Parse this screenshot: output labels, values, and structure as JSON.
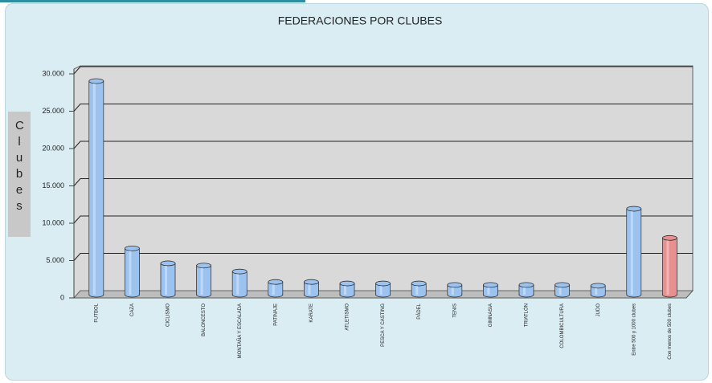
{
  "chart_data": {
    "type": "bar",
    "title": "FEDERACIONES POR CLUBES",
    "y_label": "Clubes",
    "categories": [
      "FUTBOL",
      "CAZA",
      "CICLISMO",
      "BALONCESTO",
      "MONTAÑA Y ESCALADA",
      "PATINAJE",
      "KARATE",
      "ATLETISMO",
      "PESCA Y CASTING",
      "PÁDEL",
      "TENIS",
      "GIMNASIA",
      "TRIATLÓN",
      "COLOMBICULTURA",
      "JUDO",
      "Entre 500 y 1000 clubes",
      "Con menos de 500 clubes"
    ],
    "values": [
      28600,
      6200,
      4200,
      3900,
      3100,
      1700,
      1700,
      1500,
      1500,
      1500,
      1300,
      1300,
      1300,
      1300,
      1200,
      11500,
      7600
    ],
    "colors": [
      "#9cc3f0",
      "#9cc3f0",
      "#9cc3f0",
      "#9cc3f0",
      "#9cc3f0",
      "#9cc3f0",
      "#9cc3f0",
      "#9cc3f0",
      "#9cc3f0",
      "#9cc3f0",
      "#9cc3f0",
      "#9cc3f0",
      "#9cc3f0",
      "#9cc3f0",
      "#9cc3f0",
      "#9cc3f0",
      "#e89090"
    ],
    "ylim": [
      0,
      30000
    ],
    "yticks": [
      0,
      {
        "value": 5000,
        "label": "5.000"
      },
      {
        "value": 10000,
        "label": "10.000"
      },
      {
        "value": 15000,
        "label": "15.000"
      },
      {
        "value": 20000,
        "label": "20.000"
      },
      {
        "value": 25000,
        "label": "25.000"
      },
      {
        "value": 30000,
        "label": "30.000"
      }
    ],
    "grid": true
  }
}
